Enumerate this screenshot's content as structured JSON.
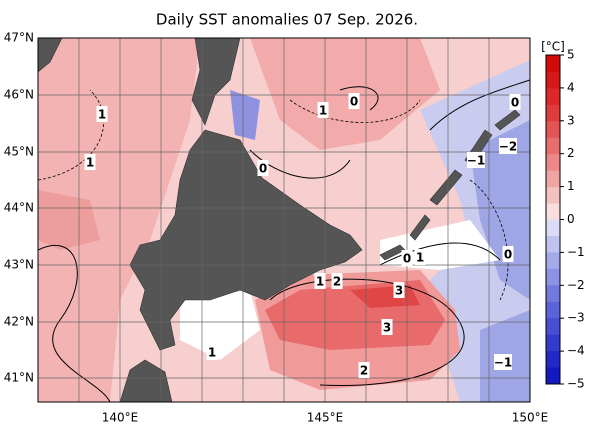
{
  "title": "Daily SST anomalies 07 Sep. 2026.",
  "lat_labels": [
    "47°N",
    "46°N",
    "45°N",
    "44°N",
    "43°N",
    "42°N",
    "41°N"
  ],
  "lon_labels": [
    "140°E",
    "145°E",
    "150°E"
  ],
  "colorbar": {
    "unit": "[°C]",
    "ticks": [
      "5",
      "4",
      "3",
      "2",
      "1",
      "0",
      "−1",
      "−2",
      "−3",
      "−4",
      "−5"
    ]
  },
  "contour_labels": [
    "1",
    "1",
    "1",
    "0",
    "0",
    "0",
    "−2",
    "−1",
    "0",
    "1",
    "0",
    "1",
    "2",
    "3",
    "3",
    "1",
    "2",
    "−1"
  ]
}
